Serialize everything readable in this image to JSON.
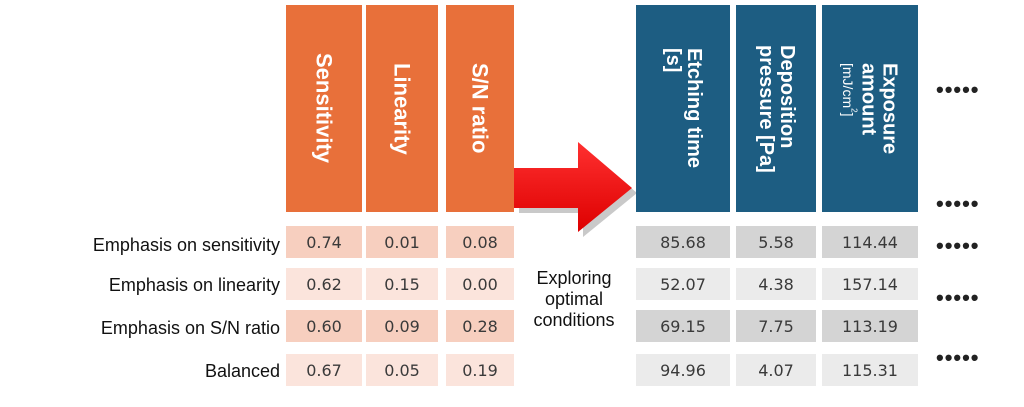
{
  "output_headers": [
    {
      "label": "Sensitivity"
    },
    {
      "label": "Linearity"
    },
    {
      "label": "S/N ratio"
    }
  ],
  "condition_headers": [
    {
      "line1": "Etching time",
      "line2": "[s]"
    },
    {
      "line1": "Deposition",
      "line2": "pressure [Pa]"
    },
    {
      "line1": "Exposure",
      "line2": "amount",
      "line3": "[mJ/cm",
      "line3_sup": "2",
      "line3_end": "]"
    }
  ],
  "rows": [
    {
      "label": "Emphasis on sensitivity",
      "outputs": [
        "0.74",
        "0.01",
        "0.08"
      ],
      "conditions": [
        "85.68",
        "5.58",
        "114.44"
      ]
    },
    {
      "label": "Emphasis on linearity",
      "outputs": [
        "0.62",
        "0.15",
        "0.00"
      ],
      "conditions": [
        "52.07",
        "4.38",
        "157.14"
      ]
    },
    {
      "label": "Emphasis on S/N ratio",
      "outputs": [
        "0.60",
        "0.09",
        "0.28"
      ],
      "conditions": [
        "69.15",
        "7.75",
        "113.19"
      ]
    },
    {
      "label": "Balanced",
      "outputs": [
        "0.67",
        "0.05",
        "0.19"
      ],
      "conditions": [
        "94.96",
        "4.07",
        "115.31"
      ]
    }
  ],
  "arrow_caption": {
    "line1": "Exploring",
    "line2": "optimal",
    "line3": "conditions"
  },
  "ellipsis": "•••••",
  "colors": {
    "orange_header": "#e8703a",
    "blue_header": "#1d5d82",
    "arrow": "#ee1111",
    "orange_cell_dark": "#f7cfbf",
    "orange_cell_light": "#fbe4dc",
    "gray_cell_dark": "#d4d4d4",
    "gray_cell_light": "#ebebeb"
  }
}
